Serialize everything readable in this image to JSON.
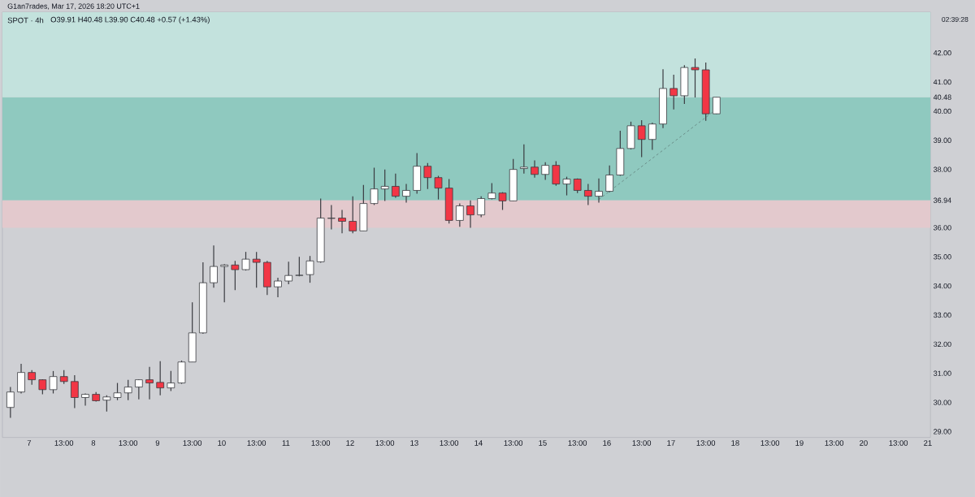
{
  "chart_data": {
    "type": "candlestick",
    "title": "SPOT · 4h",
    "subtitle": "O39.91 H40.48 L39.90 C40.48 +0.57 (+1.43%)",
    "annotations": [
      "G1an7rades, Mar 17, 2026 18:20 UTC+1",
      "02:39:28"
    ],
    "x": [
      "2026-03-06T17:00",
      "2026-03-06T21:00",
      "2026-03-07T01:00",
      "2026-03-07T05:00",
      "2026-03-07T09:00",
      "2026-03-07T13:00",
      "2026-03-07T17:00",
      "2026-03-07T21:00",
      "2026-03-08T01:00",
      "2026-03-08T05:00",
      "2026-03-08T09:00",
      "2026-03-08T13:00",
      "2026-03-08T17:00",
      "2026-03-08T21:00",
      "2026-03-09T01:00",
      "2026-03-09T05:00",
      "2026-03-09T09:00",
      "2026-03-09T13:00",
      "2026-03-09T17:00",
      "2026-03-09T21:00",
      "2026-03-10T01:00",
      "2026-03-10T05:00",
      "2026-03-10T09:00",
      "2026-03-10T13:00",
      "2026-03-10T17:00",
      "2026-03-10T21:00",
      "2026-03-11T01:00",
      "2026-03-11T05:00",
      "2026-03-11T09:00",
      "2026-03-11T13:00",
      "2026-03-11T17:00",
      "2026-03-11T21:00",
      "2026-03-12T01:00",
      "2026-03-12T05:00",
      "2026-03-12T09:00",
      "2026-03-12T13:00",
      "2026-03-12T17:00",
      "2026-03-12T21:00",
      "2026-03-13T01:00",
      "2026-03-13T05:00",
      "2026-03-13T09:00",
      "2026-03-13T13:00",
      "2026-03-13T17:00",
      "2026-03-13T21:00",
      "2026-03-14T01:00",
      "2026-03-14T05:00",
      "2026-03-14T09:00",
      "2026-03-14T13:00",
      "2026-03-14T17:00",
      "2026-03-14T21:00",
      "2026-03-15T01:00",
      "2026-03-15T05:00",
      "2026-03-15T09:00",
      "2026-03-15T13:00",
      "2026-03-15T17:00",
      "2026-03-15T21:00",
      "2026-03-16T01:00",
      "2026-03-16T05:00",
      "2026-03-16T09:00",
      "2026-03-16T13:00",
      "2026-03-16T17:00",
      "2026-03-16T21:00",
      "2026-03-17T01:00",
      "2026-03-17T05:00",
      "2026-03-17T09:00",
      "2026-03-17T13:00",
      "2026-03-17T17:00"
    ],
    "ohlc": [
      [
        29.83,
        30.53,
        29.47,
        30.36
      ],
      [
        30.36,
        31.33,
        30.31,
        31.03
      ],
      [
        31.03,
        31.11,
        30.61,
        30.78
      ],
      [
        30.78,
        30.8,
        30.28,
        30.44
      ],
      [
        30.44,
        31.08,
        30.31,
        30.89
      ],
      [
        30.89,
        31.11,
        30.64,
        30.72
      ],
      [
        30.72,
        30.94,
        29.81,
        30.17
      ],
      [
        30.17,
        30.31,
        29.89,
        30.28
      ],
      [
        30.28,
        30.36,
        30.03,
        30.06
      ],
      [
        30.08,
        30.25,
        29.69,
        30.19
      ],
      [
        30.17,
        30.67,
        30.08,
        30.33
      ],
      [
        30.33,
        30.78,
        30.08,
        30.53
      ],
      [
        30.53,
        30.8,
        30.11,
        30.78
      ],
      [
        30.78,
        31.22,
        30.11,
        30.67
      ],
      [
        30.69,
        31.42,
        30.25,
        30.5
      ],
      [
        30.5,
        31.08,
        30.39,
        30.67
      ],
      [
        30.67,
        31.44,
        30.64,
        31.39
      ],
      [
        31.39,
        33.44,
        31.39,
        32.39
      ],
      [
        32.39,
        34.81,
        32.36,
        34.11
      ],
      [
        34.11,
        35.39,
        33.94,
        34.67
      ],
      [
        34.67,
        34.75,
        33.44,
        34.72
      ],
      [
        34.72,
        34.86,
        33.86,
        34.56
      ],
      [
        34.56,
        35.17,
        34.53,
        34.92
      ],
      [
        34.92,
        35.17,
        33.94,
        34.81
      ],
      [
        34.81,
        34.86,
        33.69,
        33.97
      ],
      [
        33.97,
        34.28,
        33.61,
        34.17
      ],
      [
        34.17,
        34.83,
        34.06,
        34.36
      ],
      [
        34.36,
        35.0,
        34.33,
        34.37
      ],
      [
        34.39,
        35.03,
        34.11,
        34.86
      ],
      [
        34.83,
        37.0,
        34.8,
        36.33
      ],
      [
        36.32,
        36.78,
        35.94,
        36.33
      ],
      [
        36.33,
        36.61,
        35.81,
        36.22
      ],
      [
        36.22,
        37.08,
        35.81,
        35.89
      ],
      [
        35.89,
        37.47,
        35.89,
        36.83
      ],
      [
        36.83,
        38.06,
        36.78,
        37.33
      ],
      [
        37.33,
        38.0,
        36.92,
        37.42
      ],
      [
        37.42,
        37.86,
        37.03,
        37.08
      ],
      [
        37.08,
        37.5,
        36.86,
        37.28
      ],
      [
        37.28,
        38.56,
        37.17,
        38.11
      ],
      [
        38.11,
        38.22,
        37.33,
        37.72
      ],
      [
        37.72,
        37.78,
        36.97,
        37.36
      ],
      [
        37.36,
        37.67,
        36.14,
        36.25
      ],
      [
        36.25,
        36.83,
        36.03,
        36.75
      ],
      [
        36.75,
        36.94,
        36.0,
        36.44
      ],
      [
        36.44,
        37.08,
        36.36,
        37.0
      ],
      [
        37.0,
        37.53,
        36.97,
        37.19
      ],
      [
        37.19,
        37.22,
        36.61,
        36.92
      ],
      [
        36.92,
        38.36,
        36.92,
        38.0
      ],
      [
        38.03,
        38.86,
        37.86,
        38.08
      ],
      [
        38.08,
        38.31,
        37.72,
        37.83
      ],
      [
        37.83,
        38.25,
        37.64,
        38.14
      ],
      [
        38.14,
        38.28,
        37.44,
        37.5
      ],
      [
        37.5,
        37.75,
        37.11,
        37.67
      ],
      [
        37.67,
        37.69,
        37.19,
        37.28
      ],
      [
        37.28,
        37.5,
        36.78,
        37.08
      ],
      [
        37.08,
        37.69,
        36.86,
        37.25
      ],
      [
        37.25,
        38.14,
        37.22,
        37.81
      ],
      [
        37.81,
        39.33,
        37.78,
        38.72
      ],
      [
        38.72,
        39.64,
        38.69,
        39.5
      ],
      [
        39.5,
        39.69,
        38.42,
        39.03
      ],
      [
        39.03,
        39.61,
        38.67,
        39.56
      ],
      [
        39.56,
        41.44,
        39.42,
        40.78
      ],
      [
        40.78,
        41.25,
        40.06,
        40.53
      ],
      [
        40.53,
        41.58,
        40.25,
        41.5
      ],
      [
        41.5,
        41.81,
        40.47,
        41.42
      ],
      [
        41.42,
        41.67,
        39.67,
        39.91
      ],
      [
        39.91,
        40.48,
        39.9,
        40.48
      ]
    ],
    "series": [
      {
        "type": "line",
        "x": [
          "2026-03-15T21:00",
          "2026-03-17T16:00"
        ],
        "values": [
          36.97,
          40.0
        ],
        "color": "#6a8f8a",
        "line_style": "dashed"
      }
    ],
    "bands": [
      {
        "axis": "y",
        "from": 36.94,
        "to": 40.48,
        "color": "#8fc9bf"
      },
      {
        "axis": "y",
        "from": 40.48,
        "to": 43.4,
        "color": "#c3e2dd"
      },
      {
        "axis": "y",
        "from": 36.0,
        "to": 36.94,
        "color": "#e3c9cd"
      }
    ],
    "xlim": [
      "2026-03-06T14:00",
      "2026-03-21T01:00"
    ],
    "xticks": [
      {
        "value": "2026-03-07T00:00",
        "label": "7"
      },
      {
        "value": "2026-03-07T13:00",
        "label": "13:00"
      },
      {
        "value": "2026-03-08T00:00",
        "label": "8"
      },
      {
        "value": "2026-03-08T13:00",
        "label": "13:00"
      },
      {
        "value": "2026-03-09T00:00",
        "label": "9"
      },
      {
        "value": "2026-03-09T13:00",
        "label": "13:00"
      },
      {
        "value": "2026-03-10T00:00",
        "label": "10"
      },
      {
        "value": "2026-03-10T13:00",
        "label": "13:00"
      },
      {
        "value": "2026-03-11T00:00",
        "label": "11"
      },
      {
        "value": "2026-03-11T13:00",
        "label": "13:00"
      },
      {
        "value": "2026-03-12T00:00",
        "label": "12"
      },
      {
        "value": "2026-03-12T13:00",
        "label": "13:00"
      },
      {
        "value": "2026-03-13T00:00",
        "label": "13"
      },
      {
        "value": "2026-03-13T13:00",
        "label": "13:00"
      },
      {
        "value": "2026-03-14T00:00",
        "label": "14"
      },
      {
        "value": "2026-03-14T13:00",
        "label": "13:00"
      },
      {
        "value": "2026-03-15T00:00",
        "label": "15"
      },
      {
        "value": "2026-03-15T13:00",
        "label": "13:00"
      },
      {
        "value": "2026-03-16T00:00",
        "label": "16"
      },
      {
        "value": "2026-03-16T13:00",
        "label": "13:00"
      },
      {
        "value": "2026-03-17T00:00",
        "label": "17"
      },
      {
        "value": "2026-03-17T13:00",
        "label": "13:00"
      },
      {
        "value": "2026-03-18T00:00",
        "label": "18"
      },
      {
        "value": "2026-03-18T13:00",
        "label": "13:00"
      },
      {
        "value": "2026-03-19T00:00",
        "label": "19"
      },
      {
        "value": "2026-03-19T13:00",
        "label": "13:00"
      },
      {
        "value": "2026-03-20T00:00",
        "label": "20"
      },
      {
        "value": "2026-03-20T13:00",
        "label": "13:00"
      },
      {
        "value": "2026-03-21T00:00",
        "label": "21"
      }
    ],
    "ylim": [
      28.8,
      43.4
    ],
    "yticks": [
      {
        "value": 29,
        "label": "29.00"
      },
      {
        "value": 30,
        "label": "30.00"
      },
      {
        "value": 31,
        "label": "31.00"
      },
      {
        "value": 32,
        "label": "32.00"
      },
      {
        "value": 33,
        "label": "33.00"
      },
      {
        "value": 34,
        "label": "34.00"
      },
      {
        "value": 35,
        "label": "35.00"
      },
      {
        "value": 36,
        "label": "36.00"
      },
      {
        "value": 36.94,
        "label": "36.94"
      },
      {
        "value": 38,
        "label": "38.00"
      },
      {
        "value": 39,
        "label": "39.00"
      },
      {
        "value": 40,
        "label": "40.00"
      },
      {
        "value": 40.48,
        "label": "40.48"
      },
      {
        "value": 41,
        "label": "41.00"
      },
      {
        "value": 42,
        "label": "42.00"
      }
    ]
  }
}
